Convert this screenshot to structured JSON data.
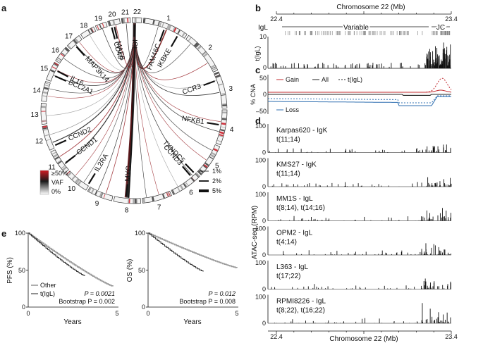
{
  "panels": {
    "a": "a",
    "b": "b",
    "c": "c",
    "d": "d",
    "e": "e"
  },
  "circos": {
    "chromosomes": [
      "1",
      "2",
      "3",
      "4",
      "5",
      "6",
      "7",
      "8",
      "9",
      "10",
      "11",
      "12",
      "13",
      "14",
      "15",
      "16",
      "17",
      "18",
      "19",
      "20",
      "21",
      "22"
    ],
    "genes": [
      "IGL",
      "FAM46C",
      "IKBKE",
      "CCR3",
      "NFKB1",
      "TXNDC5",
      "CCND3",
      "MYC",
      "IL2RA",
      "CCND1",
      "CCND2",
      "BCL2A1",
      "IL16",
      "MAP3K14",
      "MAFB",
      "CD40"
    ],
    "vaf_legend": {
      "title": "VAF",
      "high": "≥50%",
      "low": "0%"
    },
    "width_legend": [
      "1%",
      "2%",
      "5%"
    ]
  },
  "panel_b": {
    "title": "Chromosome 22 (Mb)",
    "x_start": "22.4",
    "x_end": "23.4",
    "track_label": "IgL",
    "region_variable": "Variable",
    "region_jc": "JC",
    "ylabel": "t(IgL)",
    "ytick_top": "10",
    "ytick_bottom": "0"
  },
  "panel_c": {
    "ylabel": "% CNA",
    "ticks": [
      "50",
      "0",
      "–50"
    ],
    "legend": {
      "gain": "Gain",
      "all": "All",
      "tigl": "t(IgL)",
      "loss": "Loss"
    },
    "colors": {
      "gain": "#c0282d",
      "loss": "#2f6fb0",
      "all": "#222222"
    }
  },
  "panel_d": {
    "ylabel": "ATAC-seq (RPM)",
    "ytick_top": "100",
    "ytick_bottom": "0",
    "tracks": [
      {
        "name": "Karpas620 - IgK",
        "trans": "t(11;14)"
      },
      {
        "name": "KMS27 - IgK",
        "trans": "t(11;14)"
      },
      {
        "name": "MM1S - IgL",
        "trans": "t(8;14), t(14;16)"
      },
      {
        "name": "OPM2 - IgL",
        "trans": "t(4;14)"
      },
      {
        "name": "L363 - IgL",
        "trans": "t(17;22)"
      },
      {
        "name": "RPMI8226 - IgL",
        "trans": "t(8;22), t(16;22)"
      }
    ],
    "xlabel": "Chromosome 22 (Mb)",
    "x_start": "22.4",
    "x_end": "23.4"
  },
  "panel_e": {
    "pfs": {
      "ylabel": "PFS (%)",
      "xlabel": "Years",
      "yticks": [
        "100",
        "50",
        "0"
      ],
      "xticks": [
        "0",
        "5"
      ],
      "legend": {
        "other": "Other",
        "tigl": "t(IgL)"
      },
      "p_value": "P = 0.0021",
      "bootstrap": "Bootstrap P = 0.002"
    },
    "os": {
      "ylabel": "OS (%)",
      "xlabel": "Years",
      "yticks": [
        "100",
        "50",
        "0"
      ],
      "xticks": [
        "0",
        "5"
      ],
      "p_value": "P = 0.012",
      "bootstrap": "Bootstrap P = 0.008"
    },
    "colors": {
      "other": "#9a9a9a",
      "tigl": "#222222"
    }
  }
}
